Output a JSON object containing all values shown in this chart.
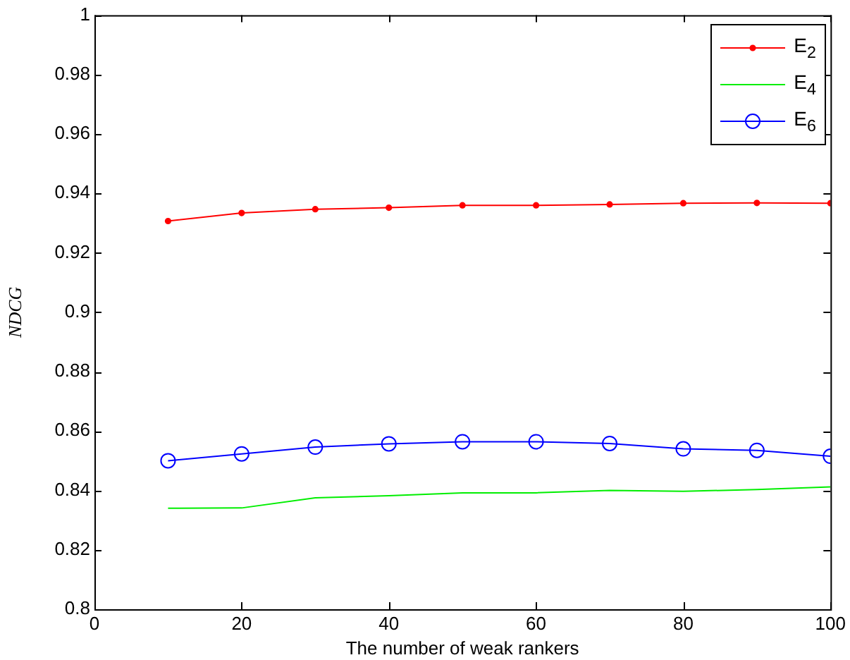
{
  "chart_data": {
    "type": "line",
    "xlabel": "The number of weak rankers",
    "ylabel": "NDCG",
    "x": [
      10,
      20,
      30,
      40,
      50,
      60,
      70,
      80,
      90,
      100
    ],
    "xlim": [
      0,
      100
    ],
    "xticks": [
      0,
      20,
      40,
      60,
      80,
      100
    ],
    "ylim": [
      0.8,
      1
    ],
    "yticks": [
      0.8,
      0.82,
      0.84,
      0.86,
      0.88,
      0.9,
      0.92,
      0.94,
      0.96,
      0.98,
      1
    ],
    "grid": false,
    "legend": "top right",
    "line_style": "solid",
    "series": [
      {
        "name": "E$_{2}$",
        "color": "#ff0000",
        "marker": "circle",
        "values": [
          0.9307,
          0.9334,
          0.9347,
          0.9352,
          0.936,
          0.936,
          0.9363,
          0.9367,
          0.9368,
          0.9367
        ]
      },
      {
        "name": "E$_{4}$",
        "color": "#00ee00",
        "marker": "none",
        "values": [
          0.834,
          0.8341,
          0.8375,
          0.8382,
          0.8392,
          0.8392,
          0.84,
          0.8397,
          0.8403,
          0.8412
        ]
      },
      {
        "name": "E$_{6}$",
        "color": "#0000ff",
        "marker": "circle",
        "values": [
          0.85,
          0.8523,
          0.8546,
          0.8557,
          0.8564,
          0.8564,
          0.8558,
          0.854,
          0.8535,
          0.8515
        ]
      }
    ]
  }
}
